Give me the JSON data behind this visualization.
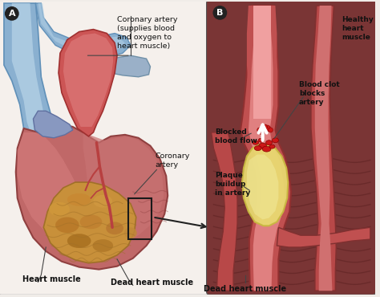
{
  "figsize": [
    4.74,
    3.7
  ],
  "dpi": 100,
  "bg_color": "#f0ece8",
  "panel_a_bg": "#f5f0ec",
  "panel_b_bg": "#7a3535",
  "panel_b_rounded_bg": "#8a4040",
  "heart_outer": "#c06060",
  "heart_inner_light": "#d88080",
  "heart_top_red": "#cc5555",
  "aorta_blue": "#8ab0d0",
  "aorta_light": "#b8d4e8",
  "aorta_dark": "#6090b8",
  "pulmonary_blue": "#7898b8",
  "dead_zone_orange": "#c8903a",
  "dead_zone_dark": "#a07028",
  "dead_zone_mid": "#b87830",
  "muscle_stripe": "#a04040",
  "artery_wall": "#c05050",
  "artery_wall_light": "#d87070",
  "artery_lumen": "#e08080",
  "artery_lumen_top": "#f0a0a0",
  "plaque_yellow": "#e8d870",
  "plaque_cream": "#f0e898",
  "plaque_edge": "#c8b840",
  "clot_red": "#cc1818",
  "clot_dark": "#880000",
  "flow_arrow_white": "#ffffff",
  "tissue_dark": "#7a3030",
  "tissue_mid": "#8a3838",
  "text_color": "#111111",
  "label_line": "#444444",
  "box_edge": "#1a1a1a",
  "arrow_color": "#222222",
  "labels": {
    "A": "A",
    "B": "B",
    "coronary_artery_top": "Coronary artery\n(supplies blood\nand oxygen to\nheart muscle)",
    "coronary_artery_mid": "Coronary\nartery",
    "heart_muscle": "Heart muscle",
    "dead_heart_muscle": "Dead heart muscle",
    "healthy_heart_muscle": "Healthy\nheart\nmuscle",
    "blood_clot": "Blood clot\nblocks\nartery",
    "blocked_blood_flow": "Blocked\nblood flow",
    "plaque_buildup": "Plaque\nbuildup\nin artery"
  }
}
